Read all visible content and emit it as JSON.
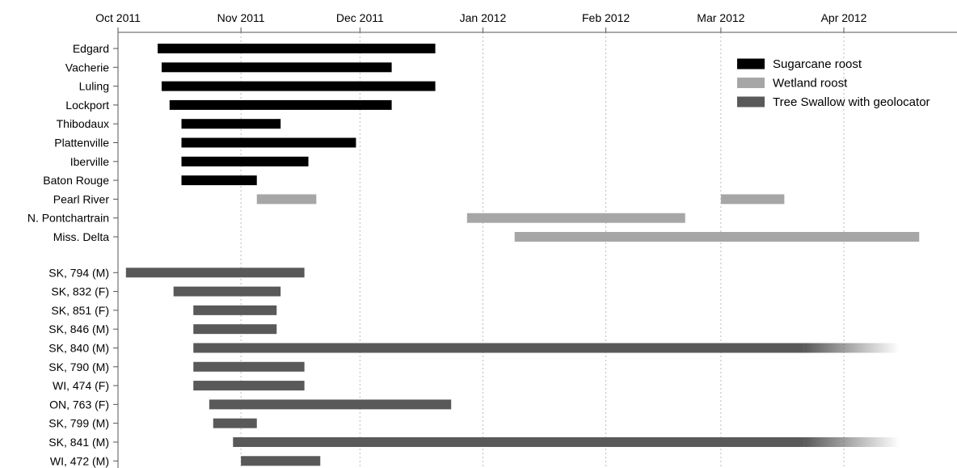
{
  "chart_data": {
    "type": "bar",
    "orientation": "horizontal-timeline",
    "x_axis": {
      "ticks": [
        {
          "label": "Oct 2011",
          "date": "2011-10-01"
        },
        {
          "label": "Nov 2011",
          "date": "2011-11-01"
        },
        {
          "label": "Dec 2011",
          "date": "2011-12-01"
        },
        {
          "label": "Jan 2012",
          "date": "2012-01-01"
        },
        {
          "label": "Feb 2012",
          "date": "2012-02-01"
        },
        {
          "label": "Mar 2012",
          "date": "2012-03-01"
        },
        {
          "label": "Apr 2012",
          "date": "2012-04-01"
        }
      ],
      "range": [
        "2011-09-25",
        "2012-04-24"
      ],
      "grid": "dotted vertical at month ticks"
    },
    "legend": {
      "placement": "top-right",
      "entries": [
        {
          "label": "Sugarcane roost",
          "color": "#000000"
        },
        {
          "label": "Wetland roost",
          "color": "#a6a6a6"
        },
        {
          "label": "Tree Swallow with geolocator",
          "color": "#595959"
        }
      ]
    },
    "series": [
      {
        "name": "Sugarcane roost",
        "color": "#000000",
        "rows": [
          {
            "label": "Edgard",
            "start": "2011-10-11",
            "end": "2011-12-20"
          },
          {
            "label": "Vacherie",
            "start": "2011-10-12",
            "end": "2011-12-09"
          },
          {
            "label": "Luling",
            "start": "2011-10-12",
            "end": "2011-12-20"
          },
          {
            "label": "Lockport",
            "start": "2011-10-14",
            "end": "2011-12-09"
          },
          {
            "label": "Thibodaux",
            "start": "2011-10-17",
            "end": "2011-11-11"
          },
          {
            "label": "Plattenville",
            "start": "2011-10-17",
            "end": "2011-11-30"
          },
          {
            "label": "Iberville",
            "start": "2011-10-17",
            "end": "2011-11-18"
          },
          {
            "label": "Baton Rouge",
            "start": "2011-10-17",
            "end": "2011-11-05"
          }
        ]
      },
      {
        "name": "Wetland roost",
        "color": "#a6a6a6",
        "rows": [
          {
            "label": "Pearl River",
            "segments": [
              {
                "start": "2011-11-05",
                "end": "2011-11-20"
              },
              {
                "start": "2012-03-01",
                "end": "2012-03-17"
              }
            ]
          },
          {
            "label": "N. Pontchartrain",
            "segments": [
              {
                "start": "2011-12-28",
                "end": "2012-02-21"
              }
            ]
          },
          {
            "label": "Miss. Delta",
            "segments": [
              {
                "start": "2012-01-09",
                "end": "2012-04-20"
              }
            ]
          }
        ]
      },
      {
        "name": "Tree Swallow with geolocator",
        "color": "#595959",
        "rows": [
          {
            "label": "SK, 794 (M)",
            "start": "2011-10-03",
            "end": "2011-11-17"
          },
          {
            "label": "SK, 832 (F)",
            "start": "2011-10-15",
            "end": "2011-11-11"
          },
          {
            "label": "SK, 851 (F)",
            "start": "2011-10-20",
            "end": "2011-11-10"
          },
          {
            "label": "SK, 846 (M)",
            "start": "2011-10-20",
            "end": "2011-11-10"
          },
          {
            "label": "SK, 840 (M)",
            "start": "2011-10-20",
            "end": "2012-04-15",
            "fades_out_after": "2012-03-22"
          },
          {
            "label": "SK, 790 (M)",
            "start": "2011-10-20",
            "end": "2011-11-17"
          },
          {
            "label": "WI, 474 (F)",
            "start": "2011-10-20",
            "end": "2011-11-17"
          },
          {
            "label": "ON, 763 (F)",
            "start": "2011-10-24",
            "end": "2011-12-24"
          },
          {
            "label": "SK, 799 (M)",
            "start": "2011-10-25",
            "end": "2011-11-05"
          },
          {
            "label": "SK, 841 (M)",
            "start": "2011-10-30",
            "end": "2012-04-15",
            "fades_out_after": "2012-03-22"
          },
          {
            "label": "WI, 472 (M)",
            "start": "2011-11-01",
            "end": "2011-11-21"
          }
        ]
      }
    ]
  }
}
